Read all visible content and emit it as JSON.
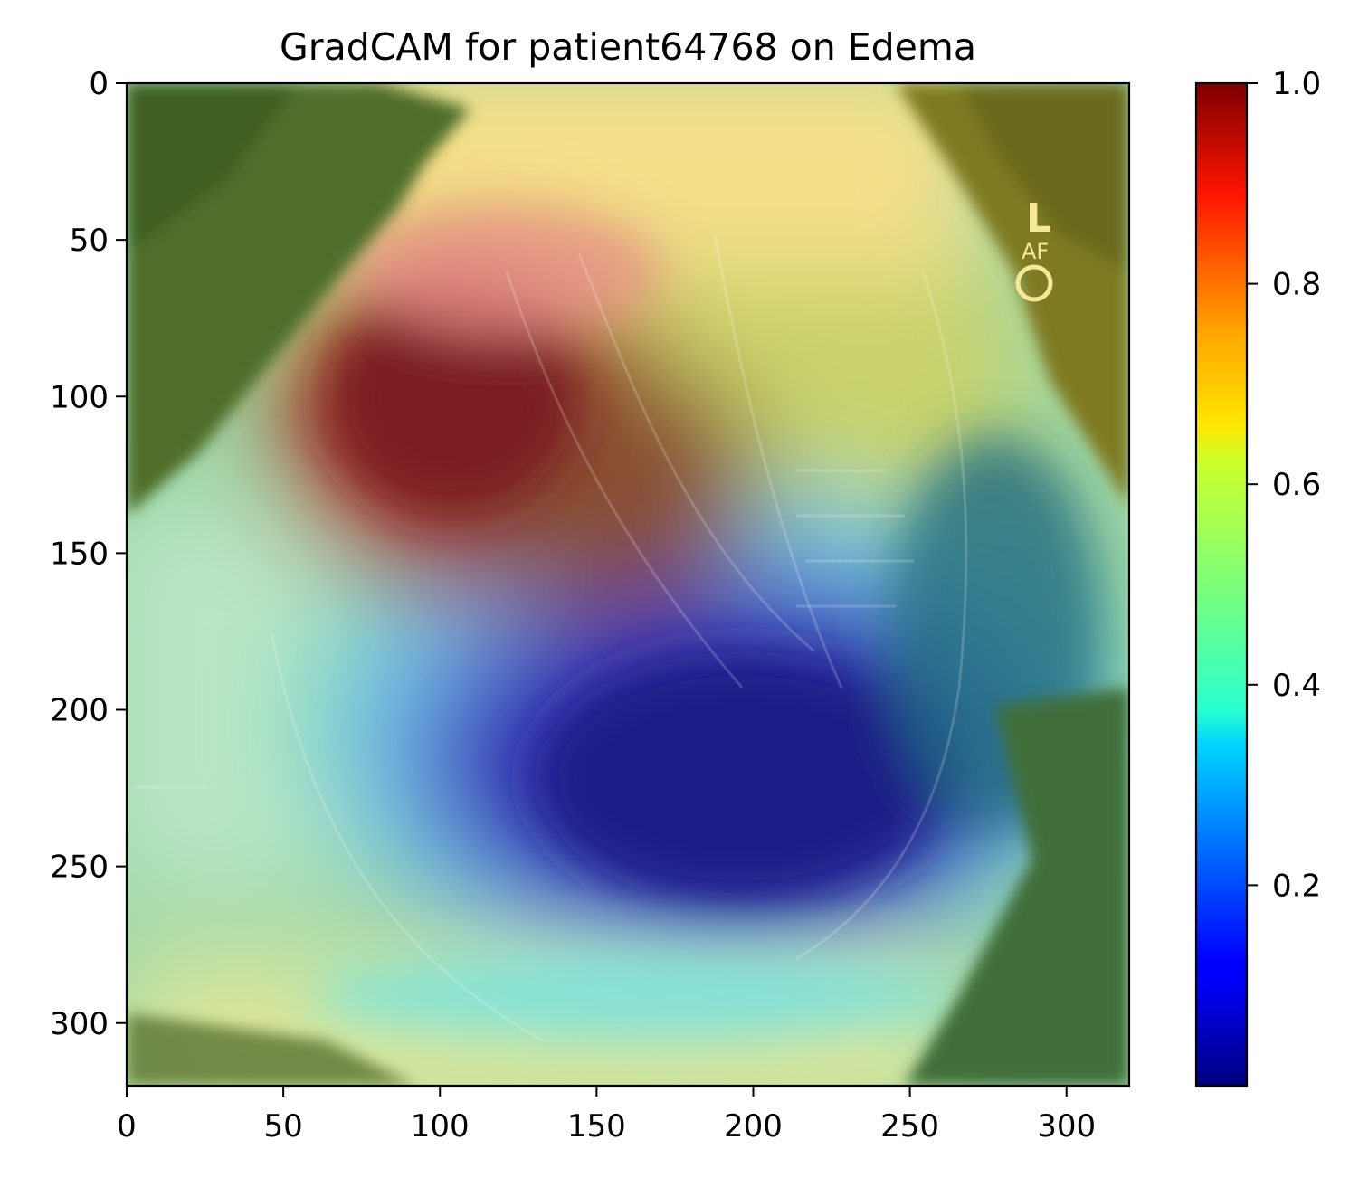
{
  "chart_data": {
    "type": "heatmap",
    "title": "GradCAM for patient64768 on Edema",
    "xlabel": "",
    "ylabel": "",
    "xlim": [
      0,
      320
    ],
    "ylim": [
      320,
      0
    ],
    "xticks": [
      0,
      50,
      100,
      150,
      200,
      250,
      300
    ],
    "yticks": [
      0,
      50,
      100,
      150,
      200,
      250,
      300
    ],
    "xtick_labels": [
      "0",
      "50",
      "100",
      "150",
      "200",
      "250",
      "300"
    ],
    "ytick_labels": [
      "0",
      "50",
      "100",
      "150",
      "200",
      "250",
      "300"
    ],
    "grid": false,
    "colormap": "jet",
    "colorbar": {
      "range": [
        0.0,
        1.0
      ],
      "ticks": [
        0.2,
        0.4,
        0.6,
        0.8,
        1.0
      ],
      "tick_labels": [
        "0.2",
        "0.4",
        "0.6",
        "0.8",
        "1.0"
      ]
    },
    "image_overlay": "lateral chest x-ray with GradCAM heatmap",
    "image_marker_text": [
      "L",
      "AF"
    ],
    "heat_regions": [
      {
        "label": "max",
        "center": [
          105,
          115
        ],
        "value": 0.95
      },
      {
        "label": "high",
        "center": [
          170,
          140
        ],
        "value": 0.85
      },
      {
        "label": "low",
        "center": [
          210,
          230
        ],
        "value": 0.05
      },
      {
        "label": "corner-top-left",
        "center": [
          20,
          20
        ],
        "value": 0.62
      },
      {
        "label": "corner-top-right",
        "center": [
          300,
          20
        ],
        "value": 0.65
      },
      {
        "label": "bottom-left",
        "center": [
          30,
          300
        ],
        "value": 0.55
      },
      {
        "label": "bottom-center",
        "center": [
          150,
          310
        ],
        "value": 0.55
      },
      {
        "label": "bottom-right",
        "center": [
          300,
          300
        ],
        "value": 0.5
      }
    ]
  }
}
